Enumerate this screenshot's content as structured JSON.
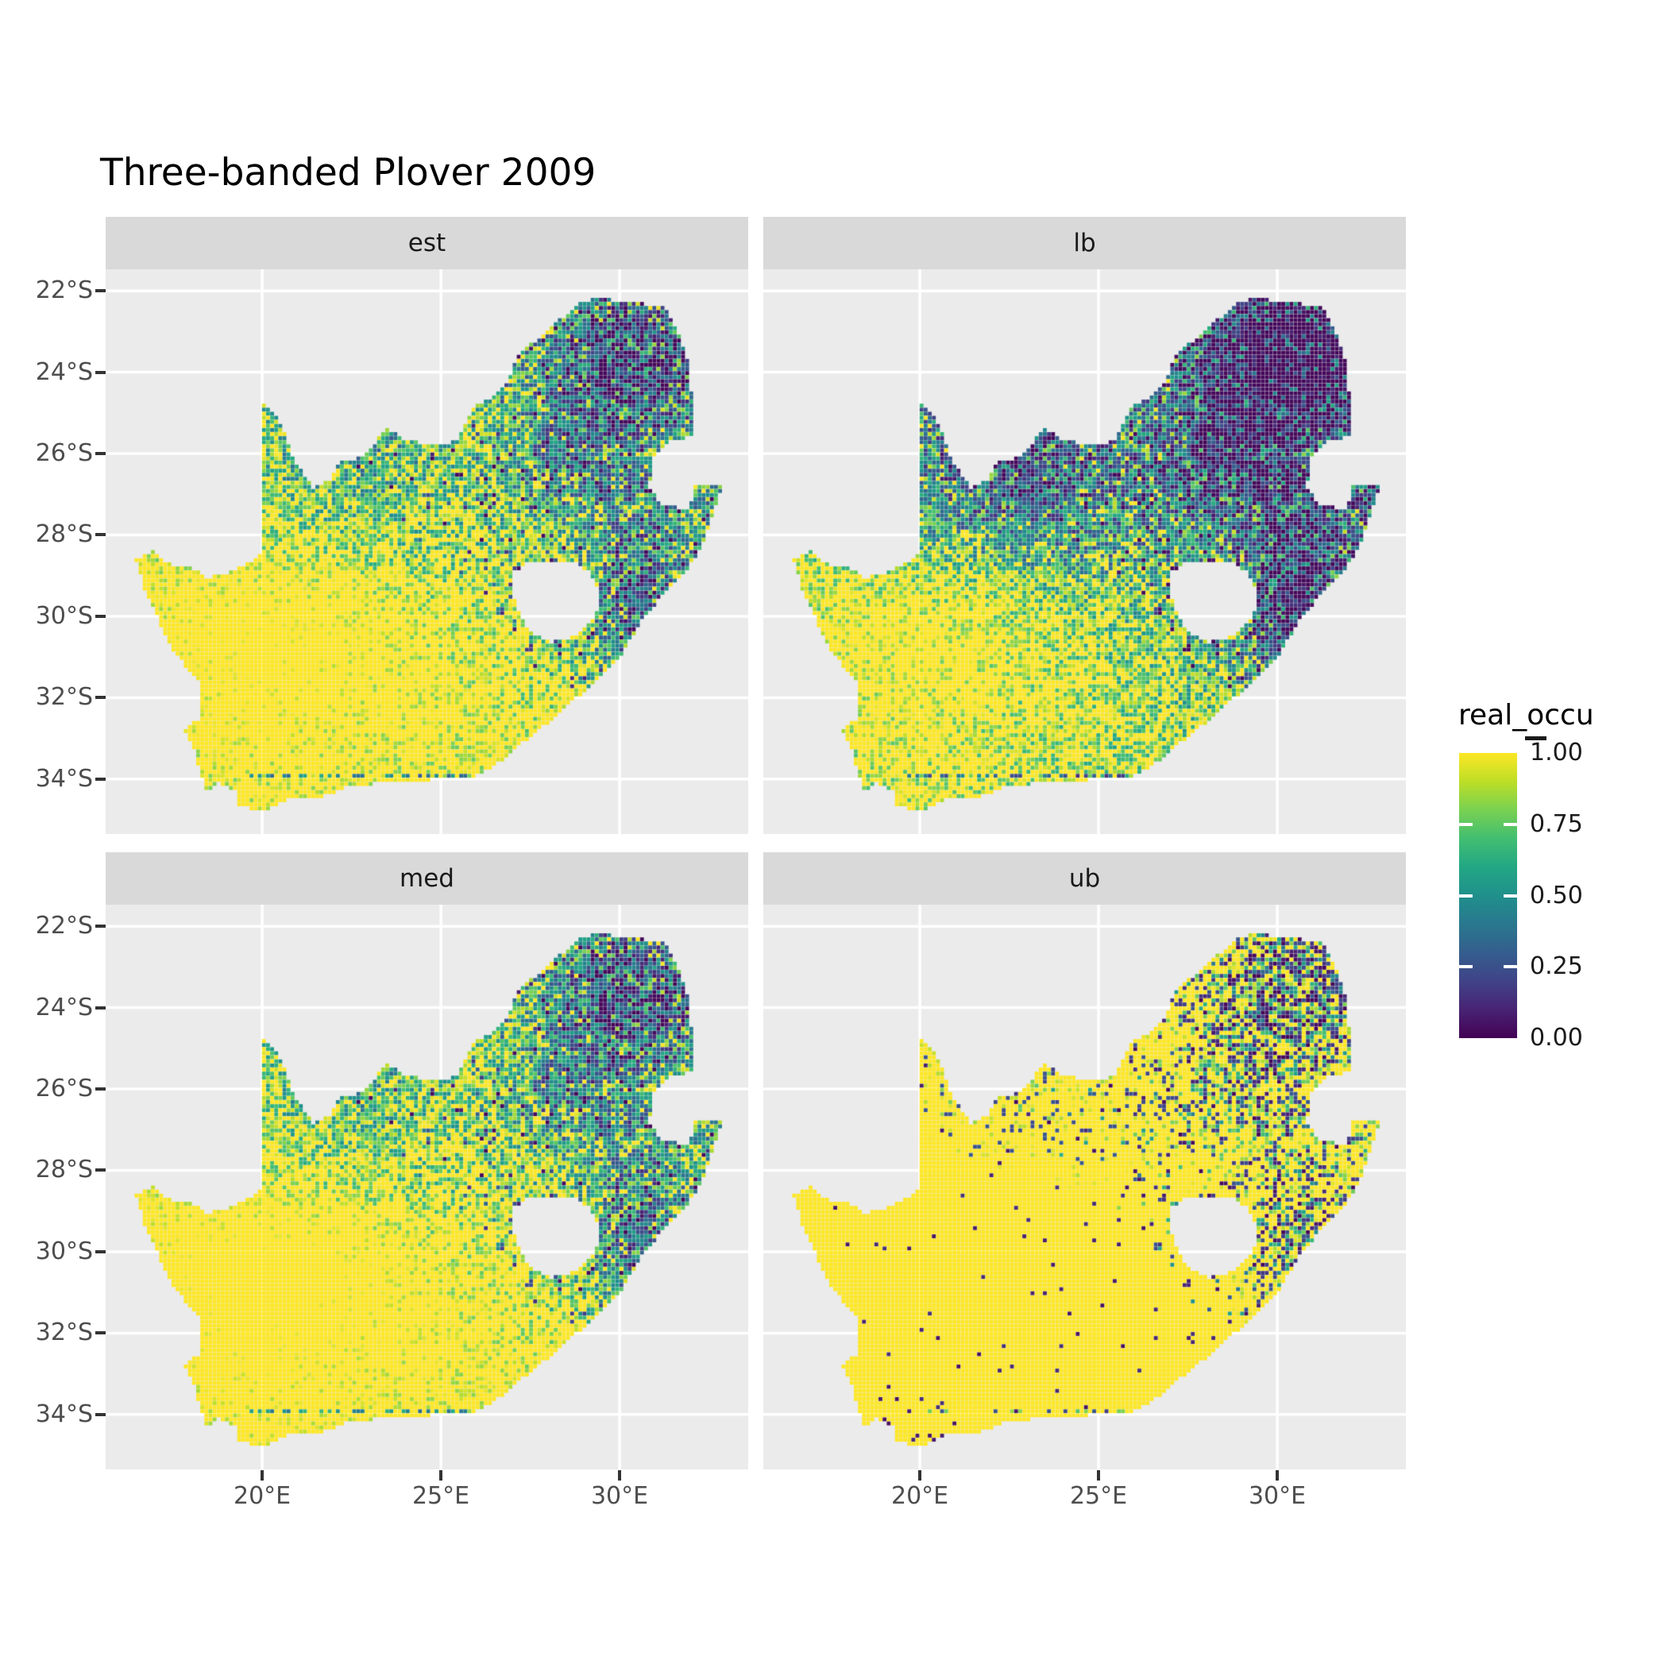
{
  "title": "Three-banded Plover 2009",
  "styles": {
    "background": "#ffffff",
    "panel_bg": "#ebebeb",
    "strip_bg": "#d9d9d9",
    "grid_color": "#ffffff",
    "axis_text_color": "#4d4d4d",
    "tick_color": "#333333",
    "strip_text_color": "#1a1a1a",
    "title_color": "#000000"
  },
  "chart_data": {
    "type": "heatmap",
    "subtype": "faceted_raster_map",
    "title": "Three-banded Plover 2009",
    "region": "South Africa",
    "grid": "major gridlines on, white",
    "legend_position": "right",
    "facets": [
      {
        "label": "est",
        "pattern": "yellow south/west, green northwest band, patchy teal-dark northeast, dark escarpment strip ~29-31E 28-31S",
        "render": {}
      },
      {
        "label": "lb",
        "pattern": "lower values overall: large teal-blue Kalahari/N-Cape blob, heavier dark northeast, yellow south-west",
        "render": {
          "nw_blob": 0.2,
          "grad_shift": 0.3
        }
      },
      {
        "label": "med",
        "pattern": "similar to est, slightly higher values, smoother green northwest",
        "render": {
          "shift": 0.06
        }
      },
      {
        "label": "ub",
        "pattern": "almost all yellow; scattered dark-purple speckle clusters in northeast and east of Lesotho",
        "render": {
          "ub": true
        }
      }
    ],
    "x_axis": {
      "tick_labels": [
        "20°E",
        "25°E",
        "30°E"
      ],
      "tick_values": [
        20,
        25,
        30
      ]
    },
    "y_axis": {
      "tick_labels": [
        "22°S",
        "24°S",
        "26°S",
        "28°S",
        "30°S",
        "32°S",
        "34°S"
      ],
      "tick_values": [
        -22,
        -24,
        -26,
        -28,
        -30,
        -32,
        -34
      ]
    },
    "extent": {
      "lon_min": 15.62,
      "lon_max": 33.6,
      "lat_min": -35.35,
      "lat_max": -21.47
    },
    "legend": {
      "title": "real_occu",
      "tick_labels": [
        "1.00",
        "0.75",
        "0.50",
        "0.25",
        "0.00"
      ],
      "tick_values": [
        1.0,
        0.75,
        0.5,
        0.25,
        0.0
      ],
      "limits": [
        0,
        1
      ]
    },
    "colormap": {
      "name": "viridis",
      "stops": [
        [
          0.0,
          "#440154"
        ],
        [
          0.1,
          "#482374"
        ],
        [
          0.2,
          "#404387"
        ],
        [
          0.3,
          "#345e8d"
        ],
        [
          0.4,
          "#29788e"
        ],
        [
          0.5,
          "#20908c"
        ],
        [
          0.6,
          "#22a784"
        ],
        [
          0.7,
          "#42be71"
        ],
        [
          0.8,
          "#79d151"
        ],
        [
          0.9,
          "#bdde26"
        ],
        [
          1.0,
          "#fde725"
        ]
      ]
    },
    "cell_size_deg": [
      0.115,
      0.1
    ],
    "region_outline": [
      [
        16.45,
        -28.6
      ],
      [
        16.95,
        -28.4
      ],
      [
        17.35,
        -28.7
      ],
      [
        17.95,
        -28.8
      ],
      [
        18.5,
        -29.05
      ],
      [
        19.0,
        -28.93
      ],
      [
        19.55,
        -28.72
      ],
      [
        19.99,
        -28.45
      ],
      [
        19.99,
        -24.77
      ],
      [
        20.35,
        -25.05
      ],
      [
        20.65,
        -25.5
      ],
      [
        20.9,
        -26.2
      ],
      [
        21.45,
        -26.85
      ],
      [
        21.9,
        -26.65
      ],
      [
        22.15,
        -26.2
      ],
      [
        22.6,
        -26.12
      ],
      [
        23.0,
        -25.95
      ],
      [
        23.45,
        -25.35
      ],
      [
        23.95,
        -25.62
      ],
      [
        24.45,
        -25.75
      ],
      [
        24.9,
        -25.8
      ],
      [
        25.4,
        -25.7
      ],
      [
        25.6,
        -25.48
      ],
      [
        25.85,
        -24.9
      ],
      [
        26.4,
        -24.62
      ],
      [
        26.85,
        -24.3
      ],
      [
        27.1,
        -23.65
      ],
      [
        27.6,
        -23.25
      ],
      [
        28.2,
        -22.8
      ],
      [
        28.9,
        -22.3
      ],
      [
        29.35,
        -22.15
      ],
      [
        29.9,
        -22.25
      ],
      [
        30.5,
        -22.3
      ],
      [
        31.3,
        -22.4
      ],
      [
        31.7,
        -23.1
      ],
      [
        31.95,
        -23.85
      ],
      [
        32.02,
        -24.6
      ],
      [
        32.05,
        -25.55
      ],
      [
        31.4,
        -25.72
      ],
      [
        30.98,
        -26.05
      ],
      [
        30.82,
        -26.8
      ],
      [
        31.1,
        -27.2
      ],
      [
        31.6,
        -27.32
      ],
      [
        31.97,
        -27.32
      ],
      [
        32.12,
        -26.8
      ],
      [
        32.88,
        -26.8
      ],
      [
        32.55,
        -27.7
      ],
      [
        32.25,
        -28.35
      ],
      [
        31.85,
        -28.95
      ],
      [
        31.25,
        -29.45
      ],
      [
        30.65,
        -30.05
      ],
      [
        30.1,
        -30.9
      ],
      [
        29.35,
        -31.55
      ],
      [
        28.45,
        -32.3
      ],
      [
        27.45,
        -33.0
      ],
      [
        26.4,
        -33.75
      ],
      [
        25.65,
        -34.02
      ],
      [
        25.0,
        -33.98
      ],
      [
        24.2,
        -34.1
      ],
      [
        23.4,
        -34.1
      ],
      [
        22.55,
        -34.15
      ],
      [
        21.7,
        -34.42
      ],
      [
        20.75,
        -34.48
      ],
      [
        20.0,
        -34.82
      ],
      [
        19.35,
        -34.62
      ],
      [
        19.28,
        -34.28
      ],
      [
        18.8,
        -34.1
      ],
      [
        18.45,
        -34.35
      ],
      [
        18.3,
        -33.92
      ],
      [
        18.05,
        -33.15
      ],
      [
        17.85,
        -32.8
      ],
      [
        18.32,
        -32.45
      ],
      [
        18.25,
        -31.65
      ],
      [
        17.55,
        -30.9
      ],
      [
        17.05,
        -30.0
      ],
      [
        16.7,
        -29.3
      ]
    ],
    "lesotho_hole": [
      [
        27.05,
        -28.9
      ],
      [
        27.55,
        -28.62
      ],
      [
        28.15,
        -28.7
      ],
      [
        28.7,
        -28.62
      ],
      [
        29.15,
        -28.92
      ],
      [
        29.38,
        -29.3
      ],
      [
        29.45,
        -29.78
      ],
      [
        29.12,
        -30.22
      ],
      [
        28.58,
        -30.55
      ],
      [
        28.02,
        -30.64
      ],
      [
        27.45,
        -30.32
      ],
      [
        27.18,
        -29.88
      ],
      [
        26.98,
        -29.4
      ]
    ]
  }
}
